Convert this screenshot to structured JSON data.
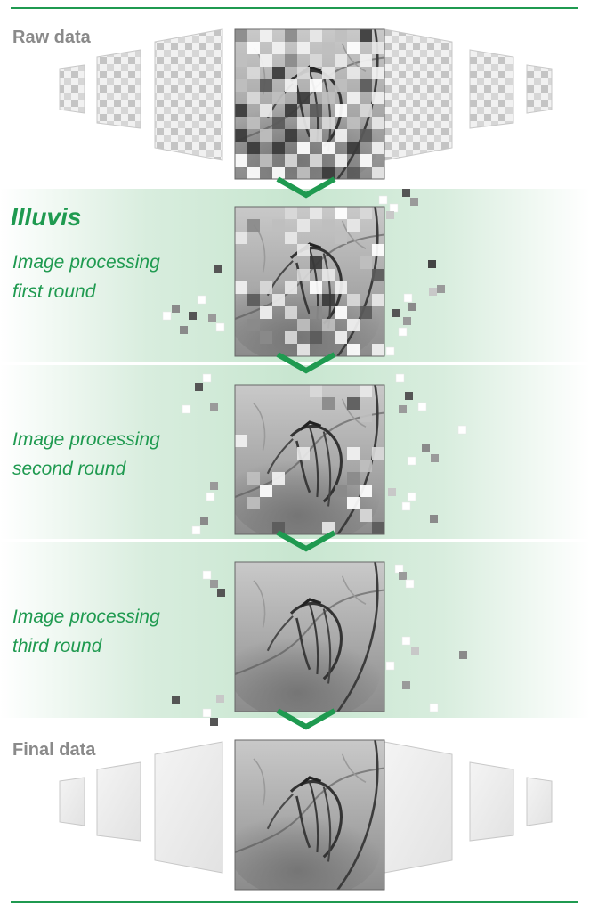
{
  "raw_heading": "Raw data",
  "brand": "Illuvis",
  "steps": [
    {
      "line1": "Image processing",
      "line2": "first round"
    },
    {
      "line1": "Image processing",
      "line2": "second round"
    },
    {
      "line1": "Image processing",
      "line2": "third round"
    }
  ],
  "final_heading": "Final data",
  "colors": {
    "accent": "#1f9a50",
    "heading_gray": "#8a8a8a"
  }
}
